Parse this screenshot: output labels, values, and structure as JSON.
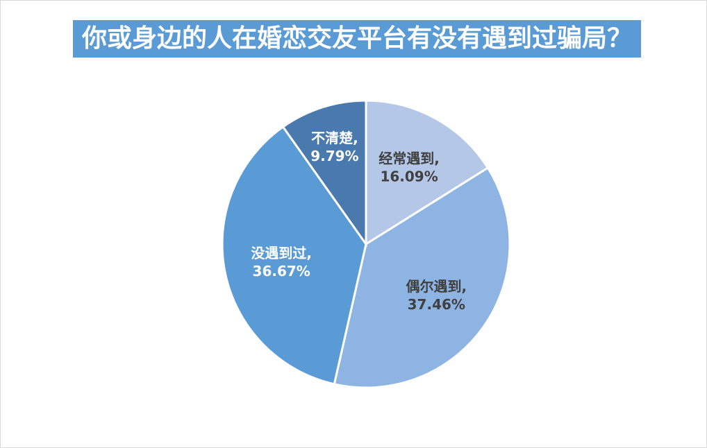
{
  "chart_data": {
    "type": "pie",
    "title": "你或身边的人在婚恋交友平台有没有遇到过骗局？",
    "slices": [
      {
        "label": "经常遇到",
        "value": 16.09,
        "display": "16.09%",
        "color": "#b4c7e7"
      },
      {
        "label": "偶尔遇到",
        "value": 37.46,
        "display": "37.46%",
        "color": "#8eb4e3"
      },
      {
        "label": "没遇到过",
        "value": 36.67,
        "display": "36.67%",
        "color": "#5b9bd5"
      },
      {
        "label": "不清楚",
        "value": 9.79,
        "display": "9.79%",
        "color": "#4a7aad"
      }
    ],
    "start_angle_deg": 0,
    "direction": "clockwise",
    "legend": "none"
  }
}
